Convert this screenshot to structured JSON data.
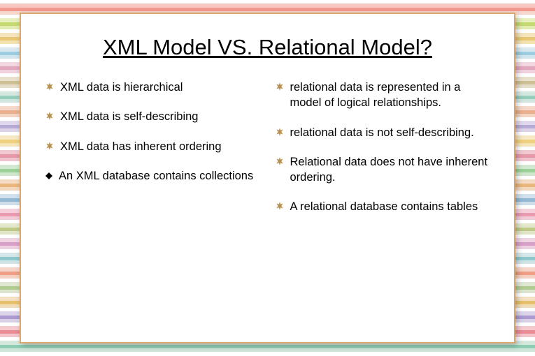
{
  "title": "XML Model VS. Relational Model?",
  "left_column": [
    {
      "text": "XML data is hierarchical",
      "marker": "star"
    },
    {
      "text": "XML data is self-describing",
      "marker": "star"
    },
    {
      "text": "XML data has inherent ordering",
      "marker": "star"
    },
    {
      "text": "An XML database contains collections",
      "marker": "diamond"
    }
  ],
  "right_column": [
    {
      "text": "relational data is represented in a model of logical relationships.",
      "marker": "star"
    },
    {
      "text": " relational data is not self-describing.",
      "marker": "star"
    },
    {
      "text": "Relational data does not have inherent ordering.",
      "marker": "star"
    },
    {
      "text": "A relational database contains tables",
      "marker": "star"
    }
  ],
  "background_stripes": [
    "#ffffff",
    "#f7c8c2",
    "#f39a8e",
    "#f7d6cd",
    "#ffffff",
    "#e8f0c0",
    "#c4d96f",
    "#e3ecb0",
    "#ffffff",
    "#f5e4bb",
    "#e8c874",
    "#f3e1b0",
    "#ffffff",
    "#d9e8f0",
    "#9dcde0",
    "#d0e4ee",
    "#ffffff",
    "#f2d6e0",
    "#e3a6bf",
    "#f0d0dd",
    "#ffffff",
    "#e8e0cc",
    "#cdc095",
    "#e6dec8",
    "#ffffff",
    "#d5e8e0",
    "#97cdbb",
    "#d0e5dc",
    "#ffffff",
    "#f5d8c9",
    "#eab08e",
    "#f3d4c3",
    "#ffffff",
    "#e0d8ec",
    "#b8aad6",
    "#ddd4ea",
    "#ffffff",
    "#f7e8c4",
    "#eed07e",
    "#f5e4ba",
    "#ffffff",
    "#f2c8d0",
    "#e698a8",
    "#f0c4ce",
    "#ffffff",
    "#d2e8d0",
    "#9dcf98",
    "#cfe6cc",
    "#ffffff",
    "#f5dbc4",
    "#eab77c",
    "#f3d7bd",
    "#ffffff",
    "#d0e0ec",
    "#93b8d4",
    "#cddeea",
    "#ffffff",
    "#f5d0da",
    "#e99cb0",
    "#f2cbd6",
    "#ffffff",
    "#e3e8cc",
    "#c0ca88",
    "#e0e5c8",
    "#ffffff",
    "#f0d4e4",
    "#d8a0c8",
    "#edd0e1",
    "#ffffff",
    "#d4e6e8",
    "#8ec8cc",
    "#d0e3e5",
    "#ffffff",
    "#f7d4c8",
    "#ee9f86",
    "#f5d0c2",
    "#ffffff",
    "#e0e8d4",
    "#b0cb90",
    "#dde5d0",
    "#ffffff",
    "#f3e0c0",
    "#e6c06c",
    "#f1dcb8",
    "#ffffff",
    "#dcd4ea",
    "#ab9bd0",
    "#d8d0e7",
    "#ffffff",
    "#f5c9ce",
    "#ea8c96",
    "#f3c5ca",
    "#ffffff",
    "#d4e8de",
    "#90ceb4",
    "#d0e5da",
    "#ffffff"
  ]
}
